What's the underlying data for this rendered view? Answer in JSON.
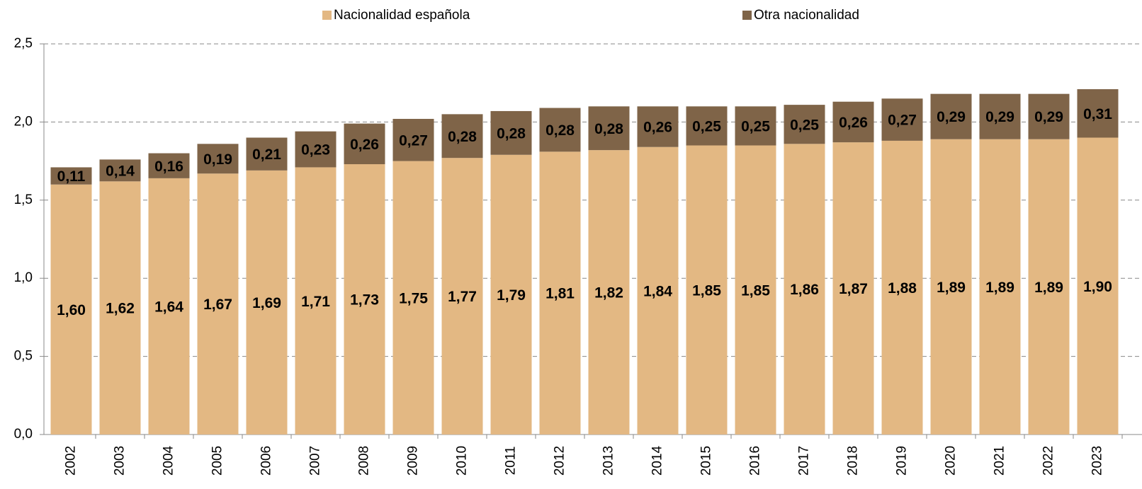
{
  "chart_data": {
    "type": "stacked_bar",
    "categories": [
      "2002",
      "2003",
      "2004",
      "2005",
      "2006",
      "2007",
      "2008",
      "2009",
      "2010",
      "2011",
      "2012",
      "2013",
      "2014",
      "2015",
      "2016",
      "2017",
      "2018",
      "2019",
      "2020",
      "2021",
      "2022",
      "2023"
    ],
    "series": [
      {
        "name": "Nacionalidad española",
        "color": "#e3b883",
        "values": [
          1.6,
          1.62,
          1.64,
          1.67,
          1.69,
          1.71,
          1.73,
          1.75,
          1.77,
          1.79,
          1.81,
          1.82,
          1.84,
          1.85,
          1.85,
          1.86,
          1.87,
          1.88,
          1.89,
          1.89,
          1.89,
          1.9
        ],
        "value_labels": [
          "1,60",
          "1,62",
          "1,64",
          "1,67",
          "1,69",
          "1,71",
          "1,73",
          "1,75",
          "1,77",
          "1,79",
          "1,81",
          "1,82",
          "1,84",
          "1,85",
          "1,85",
          "1,86",
          "1,87",
          "1,88",
          "1,89",
          "1,89",
          "1,89",
          "1,90"
        ]
      },
      {
        "name": "Otra nacionalidad",
        "color": "#7f6448",
        "values": [
          0.11,
          0.14,
          0.16,
          0.19,
          0.21,
          0.23,
          0.26,
          0.27,
          0.28,
          0.28,
          0.28,
          0.28,
          0.26,
          0.25,
          0.25,
          0.25,
          0.26,
          0.27,
          0.29,
          0.29,
          0.29,
          0.31
        ],
        "value_labels": [
          "0,11",
          "0,14",
          "0,16",
          "0,19",
          "0,21",
          "0,23",
          "0,26",
          "0,27",
          "0,28",
          "0,28",
          "0,28",
          "0,28",
          "0,26",
          "0,25",
          "0,25",
          "0,25",
          "0,26",
          "0,27",
          "0,29",
          "0,29",
          "0,29",
          "0,31"
        ]
      }
    ],
    "ylim": [
      0,
      2.5
    ],
    "yticks": [
      {
        "value": 0,
        "label": "0,0"
      },
      {
        "value": 0.5,
        "label": "0,5"
      },
      {
        "value": 1,
        "label": "1,0"
      },
      {
        "value": 1.5,
        "label": "1,5"
      },
      {
        "value": 2,
        "label": "2,0"
      },
      {
        "value": 2.5,
        "label": "2,5"
      }
    ],
    "grid": true,
    "legend": "top"
  }
}
